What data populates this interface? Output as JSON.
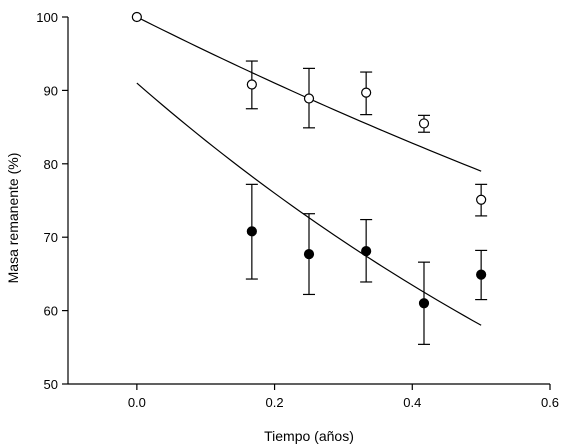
{
  "chart_data": {
    "type": "scatter",
    "xlabel": "Tiempo (años)",
    "ylabel": "Masa remanente (%)",
    "xlim": [
      -0.1,
      0.6
    ],
    "ylim": [
      50,
      100
    ],
    "xticks": [
      "0.0",
      "0.2",
      "0.4",
      "0.6"
    ],
    "xtick_values": [
      0.0,
      0.2,
      0.4,
      0.6
    ],
    "yticks": [
      "50",
      "60",
      "70",
      "80",
      "90",
      "100"
    ],
    "ytick_values": [
      50,
      60,
      70,
      80,
      90,
      100
    ],
    "grid": false,
    "series": [
      {
        "marker": "open-circle",
        "x": [
          0.0,
          0.167,
          0.25,
          0.333,
          0.417,
          0.5
        ],
        "y": [
          100.0,
          90.8,
          88.9,
          89.7,
          85.5,
          75.1
        ],
        "err_low": [
          0,
          3.3,
          4.0,
          3.0,
          1.2,
          2.2
        ],
        "err_high": [
          0,
          3.2,
          4.1,
          2.8,
          1.1,
          2.1
        ],
        "fit": {
          "x": [
            0.0,
            0.5
          ],
          "y_start": 100.0,
          "y_end": 79.0
        }
      },
      {
        "marker": "filled-circle",
        "x": [
          0.167,
          0.25,
          0.333,
          0.417,
          0.5
        ],
        "y": [
          70.8,
          67.7,
          68.1,
          61.0,
          64.9
        ],
        "err_low": [
          6.5,
          5.5,
          4.2,
          5.6,
          3.4
        ],
        "err_high": [
          6.4,
          5.5,
          4.3,
          5.6,
          3.3
        ],
        "fit": {
          "x": [
            0.0,
            0.5
          ],
          "y_start": 91.0,
          "y_end": 58.0
        }
      }
    ]
  }
}
